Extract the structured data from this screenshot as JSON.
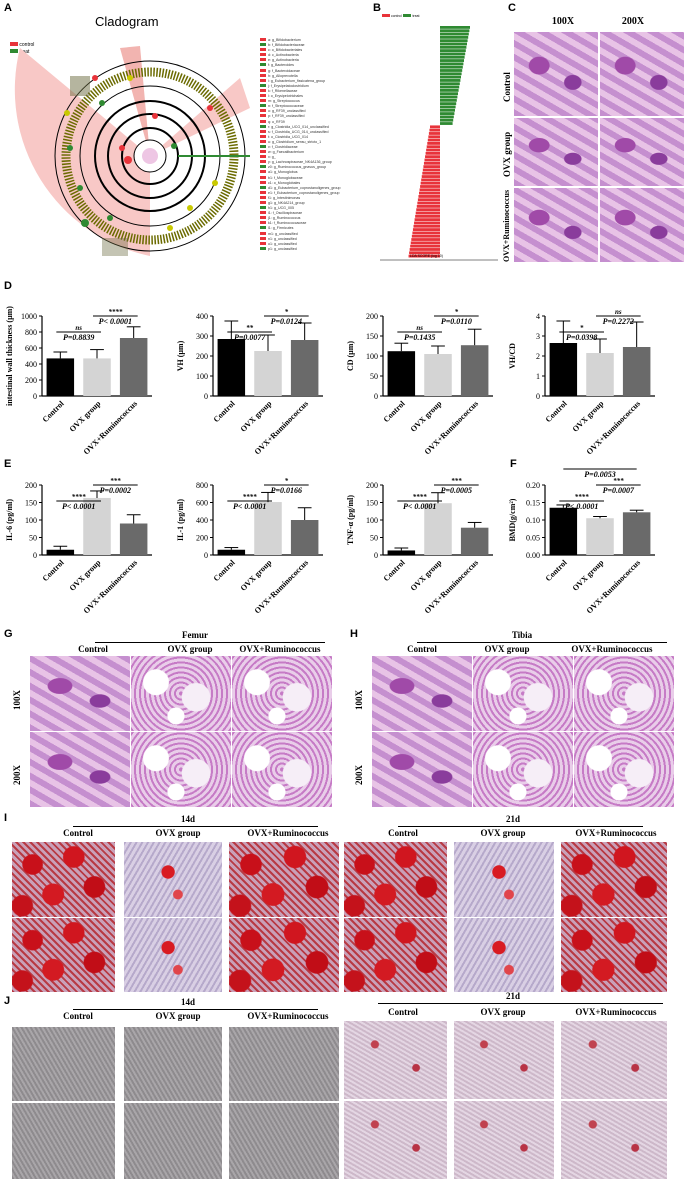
{
  "panels": {
    "A": "A",
    "B": "B",
    "C": "C",
    "D": "D",
    "E": "E",
    "F": "F",
    "G": "G",
    "H": "H",
    "I": "I",
    "J": "J"
  },
  "panel_a": {
    "title": "Cladogram",
    "legend": [
      "control",
      "treat"
    ],
    "taxa": [
      "a: g_Bifidobacterium",
      "b: f_Bifidobacteriaceae",
      "c: o_Bifidobacteriales",
      "d: c_Actinobacteria",
      "e: g_Actinobacteria",
      "f: g_Bacteroides",
      "g: f_Bacteroidaceae",
      "h: g_Alloprevotella",
      "i: g_Eubacterium_fissicatena_group",
      "j: f_Erysipelatoclostridium",
      "k: f_Rikenellaceae",
      "l: o_Erysipelotrichales",
      "m: g_Streptococcus",
      "n: f_Streptococcaceae",
      "o: g_RF39_unclassified",
      "p: f_RF39_unclassified",
      "q: o_RF39",
      "r: g_Clostridia_UCG_014_unclassified",
      "s: f_Clostridia_UCG_014_unclassified",
      "t: o_Clostridia_UCG_014",
      "u: g_Clostridium_sensu_stricto_1",
      "v: f_Clostridiaceae",
      "w: g_Faecalibacterium",
      "x: g_",
      "y: g_Lachnospiraceae_NK4A136_group",
      "z0: g_Ruminococcus_gnavus_group",
      "a1: g_Monoglobus",
      "b1: f_Monoglobaceae",
      "c1: o_Monoglobales",
      "d1: g_Eubacterium_coprostanoligenes_group",
      "e1: f_Eubacterium_coprostanoligenes_group",
      "f1: g_Intestinimonas",
      "g1: g_NK4A214_group",
      "h1: g_UCG_005",
      "i1: f_Oscillospiraceae",
      "j1: g_Ruminococcus",
      "k1: f_Ruminococcaceae",
      "l1: g_Firmicutes",
      "m1: g_unclassified",
      "n1: g_unclassified",
      "o1: g_unclassified",
      "p1: g_unclassified"
    ]
  },
  "panel_b": {
    "legend": [
      "control",
      "treat"
    ],
    "xlabel": "LDA SCORE (log 10)"
  },
  "panel_c": {
    "cols": [
      "100X",
      "200X"
    ],
    "rows": [
      "Control",
      "OVX group",
      "OVX+Ruminococcus"
    ]
  },
  "categories": [
    "Control",
    "OVX group",
    "OVX+Ruminococcus"
  ],
  "charts_d": [
    {
      "type": "bar",
      "ylabel": "intestinal wall thickness (μm)",
      "values": [
        470,
        470,
        725
      ],
      "errors": [
        80,
        110,
        140
      ],
      "ylim": [
        0,
        1000
      ],
      "ticks": [
        "0",
        "200",
        "400",
        "600",
        "800",
        "1000"
      ],
      "sig": [
        {
          "stars": "ns",
          "p": "P=0.8839"
        },
        {
          "stars": "****",
          "p": "P< 0.0001"
        }
      ]
    },
    {
      "type": "bar",
      "ylabel": "VH (μm)",
      "values": [
        285,
        225,
        280
      ],
      "errors": [
        90,
        80,
        85
      ],
      "ylim": [
        0,
        400
      ],
      "ticks": [
        "0",
        "100",
        "200",
        "300",
        "400"
      ],
      "sig": [
        {
          "stars": "**",
          "p": "P=0.0077"
        },
        {
          "stars": "*",
          "p": "P=0.0124"
        }
      ]
    },
    {
      "type": "bar",
      "ylabel": "CD (μm)",
      "values": [
        112,
        105,
        127
      ],
      "errors": [
        20,
        20,
        40
      ],
      "ylim": [
        0,
        200
      ],
      "ticks": [
        "0",
        "50",
        "100",
        "150",
        "200"
      ],
      "sig": [
        {
          "stars": "ns",
          "p": "P=0.1435"
        },
        {
          "stars": "*",
          "p": "P=0.0110"
        }
      ]
    },
    {
      "type": "bar",
      "ylabel": "VH/CD",
      "values": [
        2.65,
        2.15,
        2.45
      ],
      "errors": [
        1.1,
        0.7,
        1.25
      ],
      "ylim": [
        0,
        4
      ],
      "ticks": [
        "0",
        "1",
        "2",
        "3",
        "4"
      ],
      "sig": [
        {
          "stars": "*",
          "p": "P=0.0398"
        },
        {
          "stars": "ns",
          "p": "P=0.2272"
        }
      ]
    }
  ],
  "charts_e": [
    {
      "type": "bar",
      "ylabel": "IL-6 (pg/ml)",
      "values": [
        15,
        163,
        90
      ],
      "errors": [
        10,
        20,
        25
      ],
      "ylim": [
        0,
        200
      ],
      "ticks": [
        "0",
        "50",
        "100",
        "150",
        "200"
      ],
      "sig": [
        {
          "stars": "****",
          "p": "P< 0.0001"
        },
        {
          "stars": "***",
          "p": "P=0.0002"
        }
      ]
    },
    {
      "type": "bar",
      "ylabel": "IL-1 (pg/ml)",
      "values": [
        60,
        605,
        400
      ],
      "errors": [
        25,
        110,
        140
      ],
      "ylim": [
        0,
        800
      ],
      "ticks": [
        "0",
        "200",
        "400",
        "600",
        "800"
      ],
      "sig": [
        {
          "stars": "****",
          "p": "P< 0.0001"
        },
        {
          "stars": "*",
          "p": "P=0.0166"
        }
      ]
    },
    {
      "type": "bar",
      "ylabel": "TNF-α (pg/ml)",
      "values": [
        13,
        148,
        78
      ],
      "errors": [
        7,
        30,
        15
      ],
      "ylim": [
        0,
        200
      ],
      "ticks": [
        "0",
        "50",
        "100",
        "150",
        "200"
      ],
      "sig": [
        {
          "stars": "****",
          "p": "P< 0.0001"
        },
        {
          "stars": "***",
          "p": "P=0.0005"
        }
      ]
    },
    {
      "type": "bar",
      "ylabel": "BMD(g/cm²)",
      "values": [
        0.135,
        0.105,
        0.122
      ],
      "errors": [
        0.008,
        0.005,
        0.006
      ],
      "ylim": [
        0,
        0.2
      ],
      "ticks": [
        "0.00",
        "0.05",
        "0.10",
        "0.15",
        "0.20"
      ],
      "sig": [
        {
          "stars": "****",
          "p": "P< 0.0001"
        },
        {
          "stars": "***",
          "p": "P=0.0007"
        }
      ],
      "sig_top": {
        "stars": "**",
        "p": "P=0.0053"
      }
    }
  ],
  "panel_g": {
    "title": "Femur",
    "cols": [
      "Control",
      "OVX group",
      "OVX+Ruminococcus"
    ],
    "rows": [
      "100X",
      "200X"
    ]
  },
  "panel_h": {
    "title": "Tibia",
    "cols": [
      "Control",
      "OVX group",
      "OVX+Ruminococcus"
    ],
    "rows": [
      "100X",
      "200X"
    ]
  },
  "panel_i": {
    "left_title": "14d",
    "right_title": "21d",
    "cols": [
      "Control",
      "OVX group",
      "OVX+Ruminococcus"
    ]
  },
  "panel_j": {
    "left_title": "14d",
    "right_title": "21d",
    "cols": [
      "Control",
      "OVX group",
      "OVX+Ruminococcus"
    ]
  },
  "colors": {
    "control": "#e8333a",
    "treat": "#2f8a32",
    "bar1": "#000000",
    "bar2": "#d4d4d4",
    "bar3": "#6a6a6a"
  }
}
